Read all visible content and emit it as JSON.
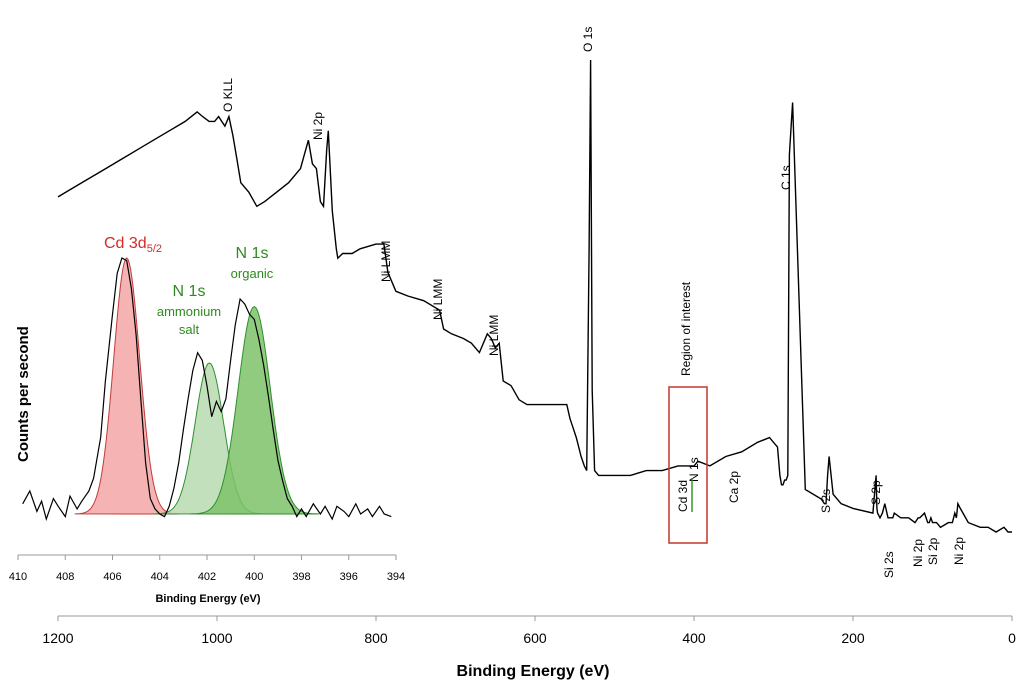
{
  "chart_data": [
    {
      "type": "line",
      "xlabel": "Binding Energy (eV)",
      "ylabel": "",
      "xlim": [
        1200,
        0
      ],
      "x_reversed": true,
      "x_ticks": [
        "1200",
        "1000",
        "800",
        "600",
        "400",
        "200",
        "0"
      ],
      "x_tick_values": [
        1200,
        1000,
        800,
        600,
        400,
        200,
        0
      ],
      "ylim": [
        0,
        100
      ],
      "y_units": "relative intensity (unlabeled axis)",
      "series": [
        {
          "x": [
            1200,
            1180,
            1160,
            1140,
            1120,
            1100,
            1080,
            1060,
            1040,
            1025,
            1018,
            1010,
            1003,
            998,
            990,
            985,
            980,
            975,
            970,
            960,
            950,
            940,
            925,
            910,
            895,
            890,
            885,
            880,
            875,
            870,
            866,
            862,
            860,
            855,
            850,
            848,
            842,
            830,
            820,
            800,
            790,
            785,
            775,
            760,
            740,
            720,
            715,
            705,
            690,
            680,
            670,
            660,
            655,
            650,
            645,
            640,
            630,
            620,
            610,
            600,
            580,
            560,
            556,
            552,
            548,
            545,
            542,
            538,
            535,
            532,
            530,
            528,
            525,
            520,
            510,
            500,
            480,
            460,
            440,
            420,
            405,
            400,
            395,
            380,
            360,
            340,
            320,
            305,
            300,
            295,
            292,
            290,
            288,
            286,
            284,
            282,
            280,
            276,
            260,
            240,
            236,
            234,
            232,
            230,
            225,
            215,
            200,
            175,
            173,
            171,
            170,
            169,
            166,
            163,
            160,
            156,
            152,
            150,
            148,
            140,
            135,
            130,
            122,
            118,
            116,
            110,
            106,
            104,
            102,
            100,
            95,
            90,
            80,
            75,
            72,
            70,
            68,
            65,
            55,
            40,
            30,
            20,
            10,
            5,
            0
          ],
          "y": [
            71,
            73,
            75,
            77,
            79,
            81,
            83,
            85,
            87,
            89,
            88,
            87,
            87,
            88,
            86,
            88,
            84,
            79,
            74,
            72,
            69,
            70,
            72,
            74,
            77,
            80,
            83,
            78,
            77,
            70,
            69,
            81,
            85,
            68,
            60,
            58,
            59,
            59,
            60,
            61,
            61,
            55,
            51,
            50,
            49,
            47,
            43,
            42,
            41,
            40,
            38,
            42,
            41,
            39,
            40,
            32,
            31,
            28,
            27,
            27,
            27,
            27,
            24,
            22,
            20,
            18,
            16,
            14,
            13,
            60,
            100,
            30,
            13,
            12,
            12,
            12,
            12,
            13,
            13,
            14,
            14,
            14,
            15,
            14,
            16,
            17,
            19,
            20,
            19,
            18,
            12,
            10,
            10,
            11,
            11,
            12,
            80,
            91,
            9,
            7,
            6,
            6,
            12,
            16,
            8,
            6,
            5,
            4,
            8,
            12,
            5,
            4,
            3,
            4,
            6,
            3,
            3,
            3,
            4,
            3,
            3,
            3,
            2,
            3,
            3,
            4,
            2,
            2,
            3,
            2,
            2,
            1,
            2,
            2,
            4,
            3,
            6,
            5,
            2,
            1,
            1,
            0,
            1,
            0,
            0
          ],
          "color": "#000000"
        }
      ],
      "annotations": [
        {
          "label": "O KLL",
          "x": 975
        },
        {
          "label": "Ni 2p",
          "x": 860
        },
        {
          "label": "Ni LMM",
          "x": 790
        },
        {
          "label": "Ni LMM",
          "x": 715
        },
        {
          "label": "Ni LMM",
          "x": 655
        },
        {
          "label": "O 1s",
          "x": 531
        },
        {
          "label": "C 1s",
          "x": 285
        },
        {
          "label": "Ca 2p",
          "x": 347
        },
        {
          "label": "S 2s",
          "x": 228
        },
        {
          "label": "S 2p",
          "x": 165
        },
        {
          "label": "Si 2s",
          "x": 152
        },
        {
          "label": "Ni 2p",
          "x": 115
        },
        {
          "label": "Si 2p",
          "x": 101
        },
        {
          "label": "Ni 2p",
          "x": 68
        },
        {
          "label": "Cd 3d",
          "x": 412
        },
        {
          "label": "N 1s",
          "x": 400
        }
      ],
      "region_label": "Region of interest",
      "region_range": [
        430,
        380
      ]
    },
    {
      "type": "line",
      "xlabel": "Binding Energy (eV)",
      "ylabel": "Counts per second",
      "xlim": [
        410,
        394
      ],
      "x_reversed": true,
      "x_ticks": [
        "410",
        "408",
        "406",
        "404",
        "402",
        "400",
        "398",
        "396",
        "394"
      ],
      "x_tick_values": [
        410,
        408,
        406,
        404,
        402,
        400,
        398,
        396,
        394
      ],
      "ylim": [
        0,
        100
      ],
      "series": [
        {
          "name": "Cd 3d5/2",
          "center": 405.4,
          "height": 100,
          "sigma": 0.55,
          "color": "#f4a6a6"
        },
        {
          "name": "N 1s ammonium salt",
          "center": 401.9,
          "height": 59,
          "sigma": 0.6,
          "color": "#b7dbb0"
        },
        {
          "name": "N 1s organic",
          "center": 400.0,
          "height": 81,
          "sigma": 0.68,
          "color": "#7cc268"
        }
      ],
      "measured": {
        "x": [
          409.8,
          409.5,
          409.2,
          409.0,
          408.8,
          408.5,
          408.3,
          408.0,
          407.8,
          407.5,
          407.3,
          407.0,
          406.8,
          406.5,
          406.3,
          406.0,
          405.8,
          405.6,
          405.4,
          405.2,
          405.0,
          404.8,
          404.6,
          404.4,
          404.2,
          404.0,
          403.8,
          403.6,
          403.4,
          403.2,
          403.0,
          402.8,
          402.6,
          402.4,
          402.2,
          402.0,
          401.8,
          401.6,
          401.4,
          401.2,
          401.0,
          400.8,
          400.6,
          400.4,
          400.2,
          400.0,
          399.8,
          399.6,
          399.4,
          399.2,
          399.0,
          398.8,
          398.6,
          398.4,
          398.2,
          398.0,
          397.8,
          397.5,
          397.2,
          397.0,
          396.7,
          396.5,
          396.2,
          396.0,
          395.7,
          395.5,
          395.2,
          395.0,
          394.7,
          394.5,
          394.2
        ],
        "y": [
          4,
          9,
          1,
          5,
          -2,
          6,
          3,
          -1,
          7,
          2,
          5,
          9,
          14,
          30,
          52,
          78,
          94,
          100,
          99,
          88,
          70,
          45,
          20,
          6,
          2,
          0,
          -1,
          3,
          10,
          20,
          33,
          45,
          56,
          63,
          60,
          50,
          38,
          44,
          40,
          45,
          60,
          74,
          84,
          82,
          78,
          76,
          68,
          58,
          46,
          33,
          21,
          13,
          6,
          3,
          -1,
          2,
          -1,
          4,
          0,
          3,
          -2,
          3,
          1,
          -1,
          4,
          0,
          2,
          -1,
          3,
          0,
          -1
        ]
      },
      "labels": [
        {
          "text": "Cd 3d",
          "sub": "5/2"
        },
        {
          "text": "N 1s",
          "line2": "ammonium",
          "line3": "salt"
        },
        {
          "text": "N 1s",
          "line2": "organic"
        }
      ]
    }
  ],
  "colors": {
    "cd": "#d42a2a",
    "n": "#2e8b1e",
    "region_box": "#c0392b",
    "line": "#000000"
  },
  "labels": {
    "main_xlabel": "Binding Energy (eV)",
    "inset_xlabel": "Binding Energy (eV)",
    "inset_ylabel": "Counts per second",
    "region": "Region of interest",
    "cd_label": "Cd 3d",
    "cd_sub": "5/2",
    "n1_title": "N 1s",
    "n1_line2": "ammonium",
    "n1_line3": "salt",
    "n2_title": "N 1s",
    "n2_line2": "organic",
    "roi_cd": "Cd 3d",
    "roi_n": "N 1s"
  }
}
